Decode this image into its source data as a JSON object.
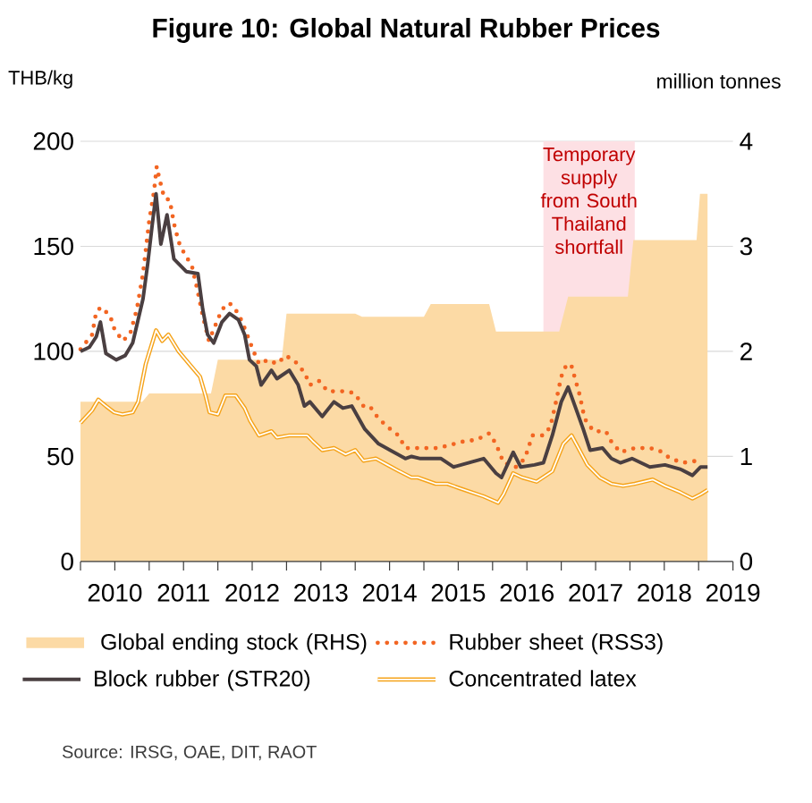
{
  "chart_data": {
    "type": "line",
    "title": "Figure 10: Global Natural Rubber Prices",
    "ylabel": "THB/kg",
    "y2label": "million tonnes",
    "xlim": [
      2010,
      2019.5
    ],
    "xticks": [
      {
        "value": 2010,
        "label": null
      },
      {
        "value": 2010.5,
        "label": "2010"
      },
      {
        "value": 2011,
        "label": null
      },
      {
        "value": 2011.5,
        "label": "2011"
      },
      {
        "value": 2012,
        "label": null
      },
      {
        "value": 2012.5,
        "label": "2012"
      },
      {
        "value": 2013,
        "label": null
      },
      {
        "value": 2013.5,
        "label": "2013"
      },
      {
        "value": 2014,
        "label": null
      },
      {
        "value": 2014.5,
        "label": "2014"
      },
      {
        "value": 2015,
        "label": null
      },
      {
        "value": 2015.5,
        "label": "2015"
      },
      {
        "value": 2016,
        "label": null
      },
      {
        "value": 2016.5,
        "label": "2016"
      },
      {
        "value": 2017,
        "label": null
      },
      {
        "value": 2017.5,
        "label": "2017"
      },
      {
        "value": 2018,
        "label": null
      },
      {
        "value": 2018.5,
        "label": "2018"
      },
      {
        "value": 2019,
        "label": null
      },
      {
        "value": 2019.5,
        "label": "2019"
      }
    ],
    "ylim": [
      0,
      200
    ],
    "yticks": [
      0,
      50,
      100,
      150,
      200
    ],
    "y2lim": [
      0,
      4
    ],
    "y2ticks": [
      0,
      1,
      2,
      3,
      4
    ],
    "grid": "y",
    "legend": "bottom",
    "bands": [
      {
        "axis": "x",
        "from": 2016.74,
        "to": 2018.07,
        "label": "Temporary supply from South Thailand shortfall",
        "color": "#fde0e4"
      }
    ],
    "annotations": [
      "Source: IRSG, OAE, DIT, RAOT"
    ],
    "series": [
      {
        "name": "Global ending stock (RHS)",
        "type": "area",
        "axis": "y2",
        "color": "#fcdaa5",
        "x": [
          2010.0,
          2010.9,
          2011.0,
          2011.9,
          2012.0,
          2012.93,
          2013.0,
          2014.0,
          2014.1,
          2015.0,
          2015.1,
          2015.95,
          2016.05,
          2016.97,
          2017.1,
          2017.97,
          2018.05,
          2018.97,
          2019.02,
          2019.13
        ],
        "values": [
          1.52,
          1.52,
          1.6,
          1.6,
          1.92,
          1.92,
          2.36,
          2.36,
          2.33,
          2.33,
          2.45,
          2.45,
          2.19,
          2.19,
          2.52,
          2.52,
          3.06,
          3.06,
          3.5,
          3.5
        ]
      },
      {
        "name": "Rubber sheet (RSS3)",
        "line_style": "dotted",
        "color": "#f26522",
        "x": [
          2010.0,
          2010.17,
          2010.23,
          2010.3,
          2010.43,
          2010.49,
          2010.61,
          2010.72,
          2010.82,
          2010.91,
          2011.0,
          2011.07,
          2011.11,
          2011.15,
          2011.22,
          2011.3,
          2011.36,
          2011.43,
          2011.52,
          2011.62,
          2011.69,
          2011.78,
          2011.87,
          2012.06,
          2012.17,
          2012.3,
          2012.39,
          2012.46,
          2012.52,
          2012.6,
          2012.73,
          2012.86,
          2012.99,
          2013.13,
          2013.26,
          2013.34,
          2013.47,
          2013.6,
          2013.78,
          2013.88,
          2013.99,
          2014.12,
          2014.21,
          2014.34,
          2014.51,
          2014.63,
          2014.73,
          2014.91,
          2015.21,
          2015.56,
          2015.77,
          2015.95,
          2016.05,
          2016.16,
          2016.34,
          2016.47,
          2016.58,
          2016.74,
          2016.84,
          2016.91,
          2017.0,
          2017.08,
          2017.15,
          2017.21,
          2017.27,
          2017.34,
          2017.47,
          2017.65,
          2017.73,
          2017.86,
          2018.07,
          2018.29,
          2018.42,
          2018.59,
          2018.77,
          2018.99
        ],
        "values": [
          101,
          108,
          119,
          121,
          117,
          111,
          105,
          108,
          120,
          137,
          162,
          176,
          188,
          182,
          173,
          172,
          161,
          152,
          146,
          141,
          131,
          117,
          105,
          120,
          123,
          118,
          111,
          105,
          100,
          94,
          96,
          94,
          98,
          95,
          90,
          84,
          86,
          81,
          81,
          81,
          80,
          74,
          74,
          68,
          63,
          60,
          54,
          54,
          54,
          57,
          58,
          61,
          56,
          47,
          45,
          49,
          60,
          60,
          64,
          74,
          88,
          94,
          93,
          86,
          79,
          68,
          62,
          62,
          57,
          52,
          54,
          54,
          53,
          49,
          47,
          48
        ]
      },
      {
        "name": "Block rubber (STR20)",
        "line_style": "solid",
        "color": "#4a3f41",
        "x": [
          2010.0,
          2010.13,
          2010.23,
          2010.29,
          2010.37,
          2010.52,
          2010.65,
          2010.76,
          2010.91,
          2010.98,
          2011.04,
          2011.1,
          2011.17,
          2011.26,
          2011.36,
          2011.54,
          2011.71,
          2011.78,
          2011.85,
          2011.94,
          2012.06,
          2012.17,
          2012.3,
          2012.39,
          2012.46,
          2012.56,
          2012.63,
          2012.78,
          2012.86,
          2013.04,
          2013.17,
          2013.26,
          2013.34,
          2013.52,
          2013.69,
          2013.82,
          2013.95,
          2014.14,
          2014.34,
          2014.51,
          2014.73,
          2014.82,
          2014.95,
          2015.25,
          2015.43,
          2015.87,
          2016.05,
          2016.13,
          2016.3,
          2016.41,
          2016.61,
          2016.74,
          2016.87,
          2017.0,
          2017.1,
          2017.2,
          2017.32,
          2017.42,
          2017.6,
          2017.73,
          2017.86,
          2018.03,
          2018.29,
          2018.51,
          2018.73,
          2018.91,
          2019.03,
          2019.13
        ],
        "values": [
          100,
          102,
          107,
          114,
          99,
          96,
          98,
          104,
          125,
          142,
          159,
          175,
          151,
          165,
          144,
          138,
          137,
          120,
          108,
          104,
          114,
          118,
          115,
          108,
          96,
          93,
          84,
          91,
          87,
          91,
          84,
          74,
          76,
          69,
          76,
          73,
          74,
          63,
          56,
          53,
          49,
          50,
          49,
          49,
          45,
          49,
          42,
          40,
          52,
          45,
          46,
          47,
          60,
          76,
          83,
          74,
          63,
          53,
          54,
          49,
          47,
          49,
          45,
          46,
          44,
          41,
          45,
          45
        ]
      },
      {
        "name": "Concentrated latex",
        "line_style": "solid",
        "color": "#f5a31a",
        "x": [
          2010.0,
          2010.17,
          2010.26,
          2010.37,
          2010.49,
          2010.61,
          2010.76,
          2010.84,
          2010.95,
          2011.1,
          2011.19,
          2011.28,
          2011.43,
          2011.61,
          2011.74,
          2011.82,
          2011.88,
          2012.0,
          2012.11,
          2012.26,
          2012.39,
          2012.47,
          2012.6,
          2012.78,
          2012.86,
          2013.04,
          2013.3,
          2013.39,
          2013.52,
          2013.69,
          2013.86,
          2014.0,
          2014.12,
          2014.3,
          2014.47,
          2014.64,
          2014.82,
          2014.91,
          2015.17,
          2015.34,
          2015.51,
          2015.87,
          2016.08,
          2016.16,
          2016.3,
          2016.43,
          2016.64,
          2016.87,
          2017.03,
          2017.15,
          2017.25,
          2017.38,
          2017.56,
          2017.73,
          2017.9,
          2018.07,
          2018.33,
          2018.51,
          2018.73,
          2018.91,
          2019.03,
          2019.13
        ],
        "values": [
          66,
          72,
          77,
          74,
          71,
          70,
          71,
          76,
          94,
          110,
          105,
          108,
          100,
          93,
          88,
          79,
          71,
          70,
          79,
          79,
          73,
          67,
          60,
          62,
          59,
          60,
          60,
          57,
          53,
          54,
          51,
          53,
          48,
          49,
          46,
          43,
          40,
          40,
          37,
          37,
          35,
          31,
          28,
          32,
          42,
          40,
          38,
          43,
          56,
          60,
          54,
          46,
          40,
          37,
          36,
          37,
          39,
          36,
          33,
          30,
          32,
          34
        ]
      }
    ]
  }
}
